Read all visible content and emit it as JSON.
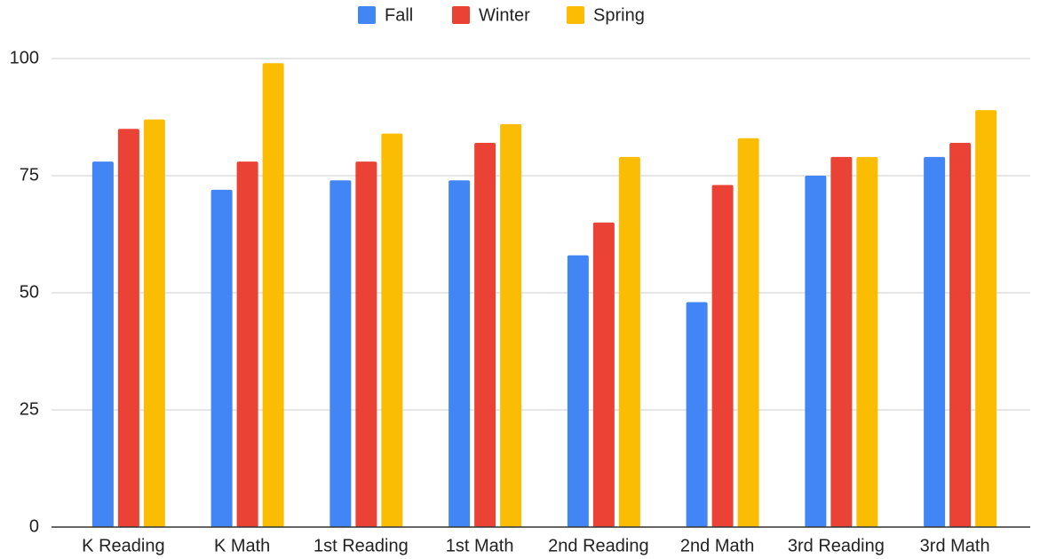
{
  "chart_data": {
    "type": "bar",
    "categories": [
      "K Reading",
      "K Math",
      "1st Reading",
      "1st Math",
      "2nd Reading",
      "2nd Math",
      "3rd Reading",
      "3rd Math"
    ],
    "series": [
      {
        "name": "Fall",
        "color": "#4285f4",
        "values": [
          78,
          72,
          74,
          74,
          58,
          48,
          75,
          79
        ]
      },
      {
        "name": "Winter",
        "color": "#ea4335",
        "values": [
          85,
          78,
          78,
          82,
          65,
          73,
          79,
          82
        ]
      },
      {
        "name": "Spring",
        "color": "#fbbc04",
        "values": [
          87,
          99,
          84,
          86,
          79,
          83,
          79,
          89
        ]
      }
    ],
    "ylim": [
      0,
      100
    ],
    "yticks": [
      0,
      25,
      50,
      75,
      100
    ],
    "grid": true,
    "legend": "top"
  }
}
